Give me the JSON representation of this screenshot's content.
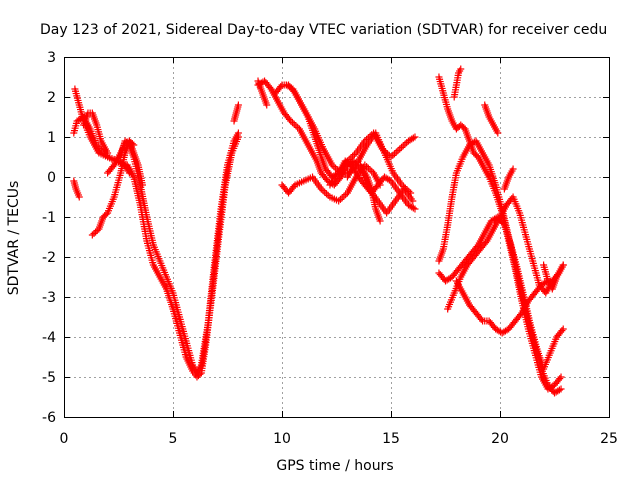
{
  "chart_data": {
    "type": "scatter",
    "title": "Day 123 of 2021, Sidereal Day-to-day VTEC variation (SDTVAR) for receiver cedu",
    "xlabel": "GPS time / hours",
    "ylabel": "SDTVAR / TECUs",
    "xlim": [
      0,
      25
    ],
    "ylim": [
      -6,
      3
    ],
    "x_ticks": [
      0,
      5,
      10,
      15,
      20,
      25
    ],
    "y_ticks": [
      -6,
      -5,
      -4,
      -3,
      -2,
      -1,
      0,
      1,
      2,
      3
    ],
    "grid": true,
    "marker": "+",
    "color": "#ff0000",
    "series": [
      {
        "x": [
          0.45,
          0.55,
          0.7
        ],
        "y": [
          -0.1,
          -0.3,
          -0.5
        ]
      },
      {
        "x": [
          0.45,
          0.6,
          0.9,
          1.2,
          1.5,
          2.0,
          2.5,
          3.0
        ],
        "y": [
          1.1,
          1.4,
          1.5,
          1.2,
          0.8,
          0.5,
          0.4,
          0.2
        ]
      },
      {
        "x": [
          0.5,
          0.7,
          0.9,
          1.2,
          1.6,
          2.0,
          2.4,
          2.8,
          3.0
        ],
        "y": [
          2.2,
          1.8,
          1.4,
          1.0,
          0.6,
          0.5,
          0.4,
          0.3,
          0.1
        ]
      },
      {
        "x": [
          0.9,
          1.1,
          1.3,
          1.5,
          1.7,
          2.0
        ],
        "y": [
          1.3,
          1.6,
          1.6,
          1.3,
          0.9,
          0.6
        ]
      },
      {
        "x": [
          1.3,
          1.6,
          1.8,
          2.0,
          2.3,
          2.6,
          2.8,
          3.0,
          3.2
        ],
        "y": [
          -1.45,
          -1.3,
          -1.0,
          -0.9,
          -0.5,
          0.1,
          0.6,
          0.9,
          0.8
        ]
      },
      {
        "x": [
          2.0,
          2.3,
          2.6,
          2.8,
          3.0,
          3.2,
          3.4,
          3.6
        ],
        "y": [
          0.1,
          0.3,
          0.6,
          0.85,
          0.9,
          0.6,
          0.3,
          -0.2
        ]
      },
      {
        "x": [
          2.6,
          2.8,
          3.0,
          3.2,
          3.5,
          3.8,
          4.1,
          4.4,
          4.7,
          5.0,
          5.3,
          5.6,
          5.9,
          6.1,
          6.3,
          6.6,
          6.9,
          7.2,
          7.5,
          7.8,
          8.0
        ],
        "y": [
          0.5,
          0.9,
          0.8,
          0.5,
          -0.2,
          -1.0,
          -1.7,
          -2.1,
          -2.5,
          -2.9,
          -3.5,
          -4.1,
          -4.7,
          -4.9,
          -4.7,
          -3.7,
          -2.2,
          -0.8,
          0.3,
          0.9,
          1.1
        ]
      },
      {
        "x": [
          2.9,
          3.2,
          3.5,
          3.8,
          4.1,
          4.4,
          4.7,
          5.0,
          5.3,
          5.6,
          5.9,
          6.1,
          6.3,
          6.5,
          6.8,
          7.1,
          7.4,
          7.7,
          8.0
        ],
        "y": [
          0.3,
          0.0,
          -0.7,
          -1.6,
          -2.2,
          -2.5,
          -2.8,
          -3.3,
          -3.9,
          -4.5,
          -4.85,
          -5.0,
          -4.9,
          -4.2,
          -2.9,
          -1.5,
          -0.2,
          0.6,
          1.0
        ]
      },
      {
        "x": [
          7.8,
          7.9,
          8.0
        ],
        "y": [
          1.4,
          1.6,
          1.8
        ]
      },
      {
        "x": [
          8.9,
          9.1,
          9.3
        ],
        "y": [
          2.4,
          2.1,
          1.8
        ]
      },
      {
        "x": [
          8.9,
          9.2,
          9.5,
          9.8,
          10.1,
          10.4,
          10.8,
          11.2,
          11.6,
          11.8,
          12.1,
          12.4,
          12.7,
          13.0,
          13.3,
          13.7,
          14.0,
          14.4,
          14.8,
          15.2,
          15.6,
          16.0
        ],
        "y": [
          2.3,
          2.4,
          2.2,
          1.9,
          1.6,
          1.4,
          1.2,
          0.8,
          0.4,
          0.1,
          -0.1,
          -0.2,
          0.0,
          0.3,
          0.4,
          0.1,
          -0.3,
          -0.6,
          -0.9,
          -0.6,
          -0.3,
          -0.6
        ]
      },
      {
        "x": [
          9.7,
          10.0,
          10.3,
          10.6,
          10.9,
          11.2,
          11.5,
          11.8,
          12.0,
          12.3,
          12.6,
          12.9,
          13.2,
          13.5,
          13.8,
          14.1,
          14.4,
          14.7,
          15.0,
          15.4,
          15.8,
          16.1
        ],
        "y": [
          2.1,
          2.3,
          2.3,
          2.1,
          1.8,
          1.5,
          1.0,
          0.5,
          0.2,
          0.0,
          0.1,
          0.4,
          0.3,
          0.0,
          -0.2,
          -0.4,
          -0.2,
          0.0,
          -0.1,
          -0.4,
          -0.7,
          -0.8
        ]
      },
      {
        "x": [
          10.2,
          10.5,
          10.8,
          11.1,
          11.5,
          11.9,
          12.3,
          12.7,
          13.1,
          13.5,
          13.9,
          14.3,
          14.7,
          15.1,
          15.5,
          15.9
        ],
        "y": [
          2.3,
          2.2,
          1.9,
          1.6,
          1.2,
          0.7,
          0.3,
          0.1,
          0.1,
          0.4,
          0.8,
          1.1,
          0.6,
          0.1,
          -0.2,
          -0.4
        ]
      },
      {
        "x": [
          10.0,
          10.3,
          10.6,
          11.0,
          11.4,
          11.8,
          12.2,
          12.6,
          13.0,
          13.4,
          13.8,
          14.2,
          14.5
        ],
        "y": [
          -0.2,
          -0.4,
          -0.2,
          -0.1,
          0.0,
          -0.3,
          -0.5,
          -0.6,
          -0.4,
          0.0,
          0.3,
          0.1,
          -0.2
        ]
      },
      {
        "x": [
          12.2,
          12.6,
          13.0,
          13.4,
          13.8,
          14.2,
          14.6,
          15.0,
          15.4,
          15.8,
          16.1
        ],
        "y": [
          -0.2,
          0.1,
          0.4,
          0.6,
          0.9,
          1.1,
          0.7,
          0.5,
          0.7,
          0.9,
          1.0
        ]
      },
      {
        "x": [
          13.0,
          13.3,
          13.6,
          13.9,
          14.1,
          14.3,
          14.5
        ],
        "y": [
          0.0,
          0.3,
          0.3,
          0.0,
          -0.3,
          -0.8,
          -1.1
        ]
      },
      {
        "x": [
          17.2,
          17.4,
          17.6,
          17.8,
          18.0,
          18.2,
          18.4,
          18.6,
          18.8,
          19.0,
          19.2,
          19.5,
          19.8,
          20.1,
          20.4,
          20.7,
          21.0,
          21.3,
          21.6,
          21.9,
          22.2,
          22.5,
          22.8
        ],
        "y": [
          2.5,
          2.1,
          1.7,
          1.4,
          1.2,
          1.3,
          1.2,
          0.9,
          0.6,
          0.5,
          0.3,
          0.0,
          -0.4,
          -0.9,
          -1.6,
          -2.3,
          -3.1,
          -3.8,
          -4.4,
          -5.0,
          -5.3,
          -5.2,
          -5.0
        ]
      },
      {
        "x": [
          17.2,
          17.4,
          17.6,
          17.8,
          18.0,
          18.3,
          18.6,
          18.9,
          19.2,
          19.5,
          19.8,
          20.1,
          20.4,
          20.7,
          21.0,
          21.3,
          21.6,
          21.9,
          22.2,
          22.5,
          22.8
        ],
        "y": [
          -2.1,
          -1.8,
          -1.2,
          -0.5,
          0.1,
          0.5,
          0.8,
          0.9,
          0.6,
          0.3,
          -0.2,
          -0.8,
          -1.5,
          -2.2,
          -2.9,
          -3.6,
          -4.2,
          -4.8,
          -5.2,
          -5.4,
          -5.3
        ]
      },
      {
        "x": [
          17.2,
          17.5,
          17.8,
          18.1,
          18.4,
          18.7,
          19.0,
          19.3,
          19.6,
          19.9,
          20.2,
          20.5,
          20.8,
          21.1,
          21.4,
          21.7,
          22.0,
          22.3,
          22.6,
          22.9
        ],
        "y": [
          -2.4,
          -2.6,
          -2.5,
          -2.3,
          -2.1,
          -1.9,
          -1.7,
          -1.4,
          -1.1,
          -1.0,
          -1.2,
          -1.7,
          -2.3,
          -3.0,
          -3.7,
          -4.3,
          -4.8,
          -4.4,
          -4.0,
          -3.8
        ]
      },
      {
        "x": [
          17.6,
          17.9,
          18.2,
          18.5,
          18.8,
          19.1,
          19.4,
          19.7,
          20.0,
          20.3,
          20.6,
          20.9,
          21.2,
          21.5,
          21.8,
          22.1,
          22.4,
          22.7,
          22.9
        ],
        "y": [
          -3.3,
          -2.9,
          -2.5,
          -2.2,
          -2.0,
          -1.8,
          -1.6,
          -1.3,
          -1.0,
          -0.7,
          -0.5,
          -0.9,
          -1.5,
          -2.1,
          -2.7,
          -2.9,
          -2.6,
          -2.4,
          -2.2
        ]
      },
      {
        "x": [
          18.0,
          18.3,
          18.6,
          18.9,
          19.2,
          19.5,
          19.8,
          20.1,
          20.4,
          20.7,
          21.0,
          21.3,
          21.6,
          21.9,
          22.2,
          22.5
        ],
        "y": [
          -2.6,
          -2.9,
          -3.2,
          -3.4,
          -3.6,
          -3.6,
          -3.8,
          -3.9,
          -3.8,
          -3.6,
          -3.4,
          -3.1,
          -2.9,
          -2.7,
          -2.6,
          -2.6
        ]
      },
      {
        "x": [
          17.9,
          18.0,
          18.1,
          18.2
        ],
        "y": [
          2.0,
          2.3,
          2.6,
          2.7
        ]
      },
      {
        "x": [
          19.3,
          19.5,
          19.7,
          19.9
        ],
        "y": [
          1.8,
          1.5,
          1.3,
          1.1
        ]
      },
      {
        "x": [
          20.2,
          20.4,
          20.6
        ],
        "y": [
          -0.3,
          0.0,
          0.2
        ]
      },
      {
        "x": [
          22.0,
          22.2,
          22.4,
          22.6,
          22.8,
          22.9
        ],
        "y": [
          -2.2,
          -2.6,
          -2.8,
          -2.5,
          -2.3,
          -2.2
        ]
      }
    ]
  }
}
